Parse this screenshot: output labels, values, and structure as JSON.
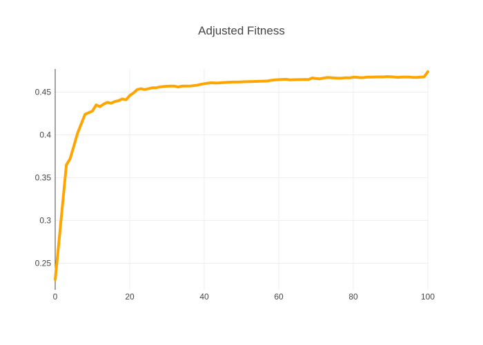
{
  "chart_data": {
    "type": "line",
    "title": "Adjusted Fitness",
    "xlabel": "",
    "ylabel": "",
    "xlim": [
      0,
      100
    ],
    "ylim": [
      0.219,
      0.477
    ],
    "grid": true,
    "x_ticks": [
      0,
      20,
      40,
      60,
      80,
      100
    ],
    "x_tick_labels": [
      "0",
      "20",
      "40",
      "60",
      "80",
      "100"
    ],
    "y_ticks": [
      0.25,
      0.3,
      0.35,
      0.4,
      0.45
    ],
    "y_tick_labels": [
      "0.25",
      "0.3",
      "0.35",
      "0.4",
      "0.45"
    ],
    "colors": {
      "line": "#FFA500",
      "grid": "#eeeeee",
      "axis": "#444444",
      "text": "#444444"
    },
    "series": [
      {
        "x": [
          0,
          1,
          2,
          3,
          4,
          5,
          6,
          7,
          8,
          9,
          10,
          11,
          12,
          13,
          14,
          15,
          16,
          17,
          18,
          19,
          20,
          21,
          22,
          23,
          24,
          25,
          26,
          27,
          28,
          29,
          30,
          31,
          32,
          33,
          34,
          35,
          36,
          37,
          38,
          39,
          40,
          41,
          42,
          43,
          44,
          45,
          46,
          47,
          48,
          49,
          50,
          51,
          52,
          53,
          54,
          55,
          56,
          57,
          58,
          59,
          60,
          61,
          62,
          63,
          64,
          65,
          66,
          67,
          68,
          69,
          70,
          71,
          72,
          73,
          74,
          75,
          76,
          77,
          78,
          79,
          80,
          81,
          82,
          83,
          84,
          85,
          86,
          87,
          88,
          89,
          90,
          91,
          92,
          93,
          94,
          95,
          96,
          97,
          98,
          99,
          100
        ],
        "y": [
          0.231,
          0.275,
          0.32,
          0.365,
          0.372,
          0.387,
          0.402,
          0.413,
          0.424,
          0.426,
          0.428,
          0.435,
          0.433,
          0.436,
          0.438,
          0.437,
          0.439,
          0.44,
          0.442,
          0.441,
          0.446,
          0.449,
          0.453,
          0.454,
          0.453,
          0.454,
          0.455,
          0.455,
          0.456,
          0.4565,
          0.4568,
          0.457,
          0.457,
          0.456,
          0.457,
          0.457,
          0.457,
          0.4575,
          0.458,
          0.459,
          0.4598,
          0.4605,
          0.461,
          0.4606,
          0.4608,
          0.4612,
          0.4614,
          0.4617,
          0.4618,
          0.4618,
          0.462,
          0.4622,
          0.4623,
          0.4624,
          0.4625,
          0.4627,
          0.4628,
          0.463,
          0.4638,
          0.4643,
          0.4646,
          0.4648,
          0.465,
          0.4643,
          0.4645,
          0.4646,
          0.4647,
          0.4648,
          0.4647,
          0.4665,
          0.4658,
          0.4655,
          0.4663,
          0.4671,
          0.4668,
          0.4665,
          0.4662,
          0.4664,
          0.4668,
          0.4666,
          0.4675,
          0.4673,
          0.4668,
          0.4671,
          0.4676,
          0.4675,
          0.4677,
          0.4678,
          0.4677,
          0.4681,
          0.4679,
          0.4676,
          0.4672,
          0.4676,
          0.4676,
          0.4676,
          0.4672,
          0.4671,
          0.4675,
          0.4677,
          0.4739
        ]
      }
    ]
  }
}
